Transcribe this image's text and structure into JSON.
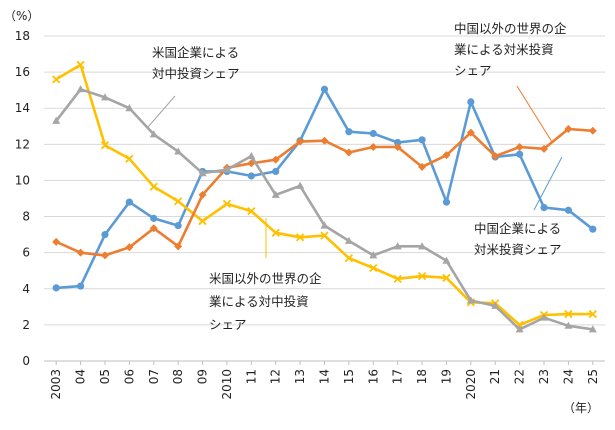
{
  "chart_data": {
    "type": "line",
    "y_unit_label": "（%）",
    "x_unit_label": "（年）",
    "x_tick_labels": [
      "2003",
      "04",
      "05",
      "06",
      "07",
      "08",
      "09",
      "2010",
      "11",
      "12",
      "13",
      "14",
      "15",
      "16",
      "17",
      "18",
      "19",
      "2020",
      "21",
      "22",
      "23",
      "24",
      "25"
    ],
    "ylim": [
      0,
      18
    ],
    "yticks": [
      0,
      2,
      4,
      6,
      8,
      10,
      12,
      14,
      16,
      18
    ],
    "grid": true,
    "series": [
      {
        "key": "china_in_us",
        "color": "#5B9BD5",
        "marker": "circle",
        "values": [
          4.05,
          4.15,
          7.0,
          8.8,
          7.9,
          7.5,
          10.5,
          10.5,
          10.25,
          10.5,
          12.2,
          15.05,
          12.7,
          12.6,
          12.1,
          12.25,
          8.8,
          14.35,
          11.3,
          11.45,
          8.5,
          8.35,
          7.3
        ]
      },
      {
        "key": "nonus_in_china",
        "color": "#FFC000",
        "marker": "x",
        "values": [
          15.6,
          16.4,
          11.95,
          11.2,
          9.65,
          8.85,
          7.75,
          8.7,
          8.3,
          7.1,
          6.85,
          6.95,
          5.7,
          5.15,
          4.55,
          4.7,
          4.6,
          3.25,
          3.2,
          2.0,
          2.55,
          2.6,
          2.6
        ]
      },
      {
        "key": "nonchina_in_us",
        "color": "#ED7D31",
        "marker": "diamond",
        "values": [
          6.6,
          6.0,
          5.85,
          6.3,
          7.35,
          6.35,
          9.2,
          10.7,
          10.95,
          11.15,
          12.15,
          12.2,
          11.55,
          11.85,
          11.85,
          10.75,
          11.4,
          12.65,
          11.35,
          11.85,
          11.75,
          12.85,
          12.75
        ]
      },
      {
        "key": "us_in_china",
        "color": "#A5A5A5",
        "marker": "triangle",
        "values": [
          13.3,
          15.05,
          14.6,
          14.0,
          12.55,
          11.6,
          10.4,
          10.6,
          11.35,
          9.2,
          9.7,
          7.5,
          6.65,
          5.85,
          6.35,
          6.35,
          5.55,
          3.35,
          3.05,
          1.75,
          2.4,
          1.95,
          1.75
        ]
      }
    ],
    "annotations": [
      {
        "key": "us_in_china",
        "lines": [
          "米国企業による",
          "対中投資シェア"
        ]
      },
      {
        "key": "nonchina_in_us",
        "lines": [
          "中国以外の世界の企",
          "業による対米投資",
          "シェア"
        ]
      },
      {
        "key": "china_in_us",
        "lines": [
          "中国企業による",
          "対米投資シェア"
        ]
      },
      {
        "key": "nonus_in_china",
        "lines": [
          "米国以外の世界の企",
          "業による対中投資",
          "シェア"
        ]
      }
    ]
  }
}
